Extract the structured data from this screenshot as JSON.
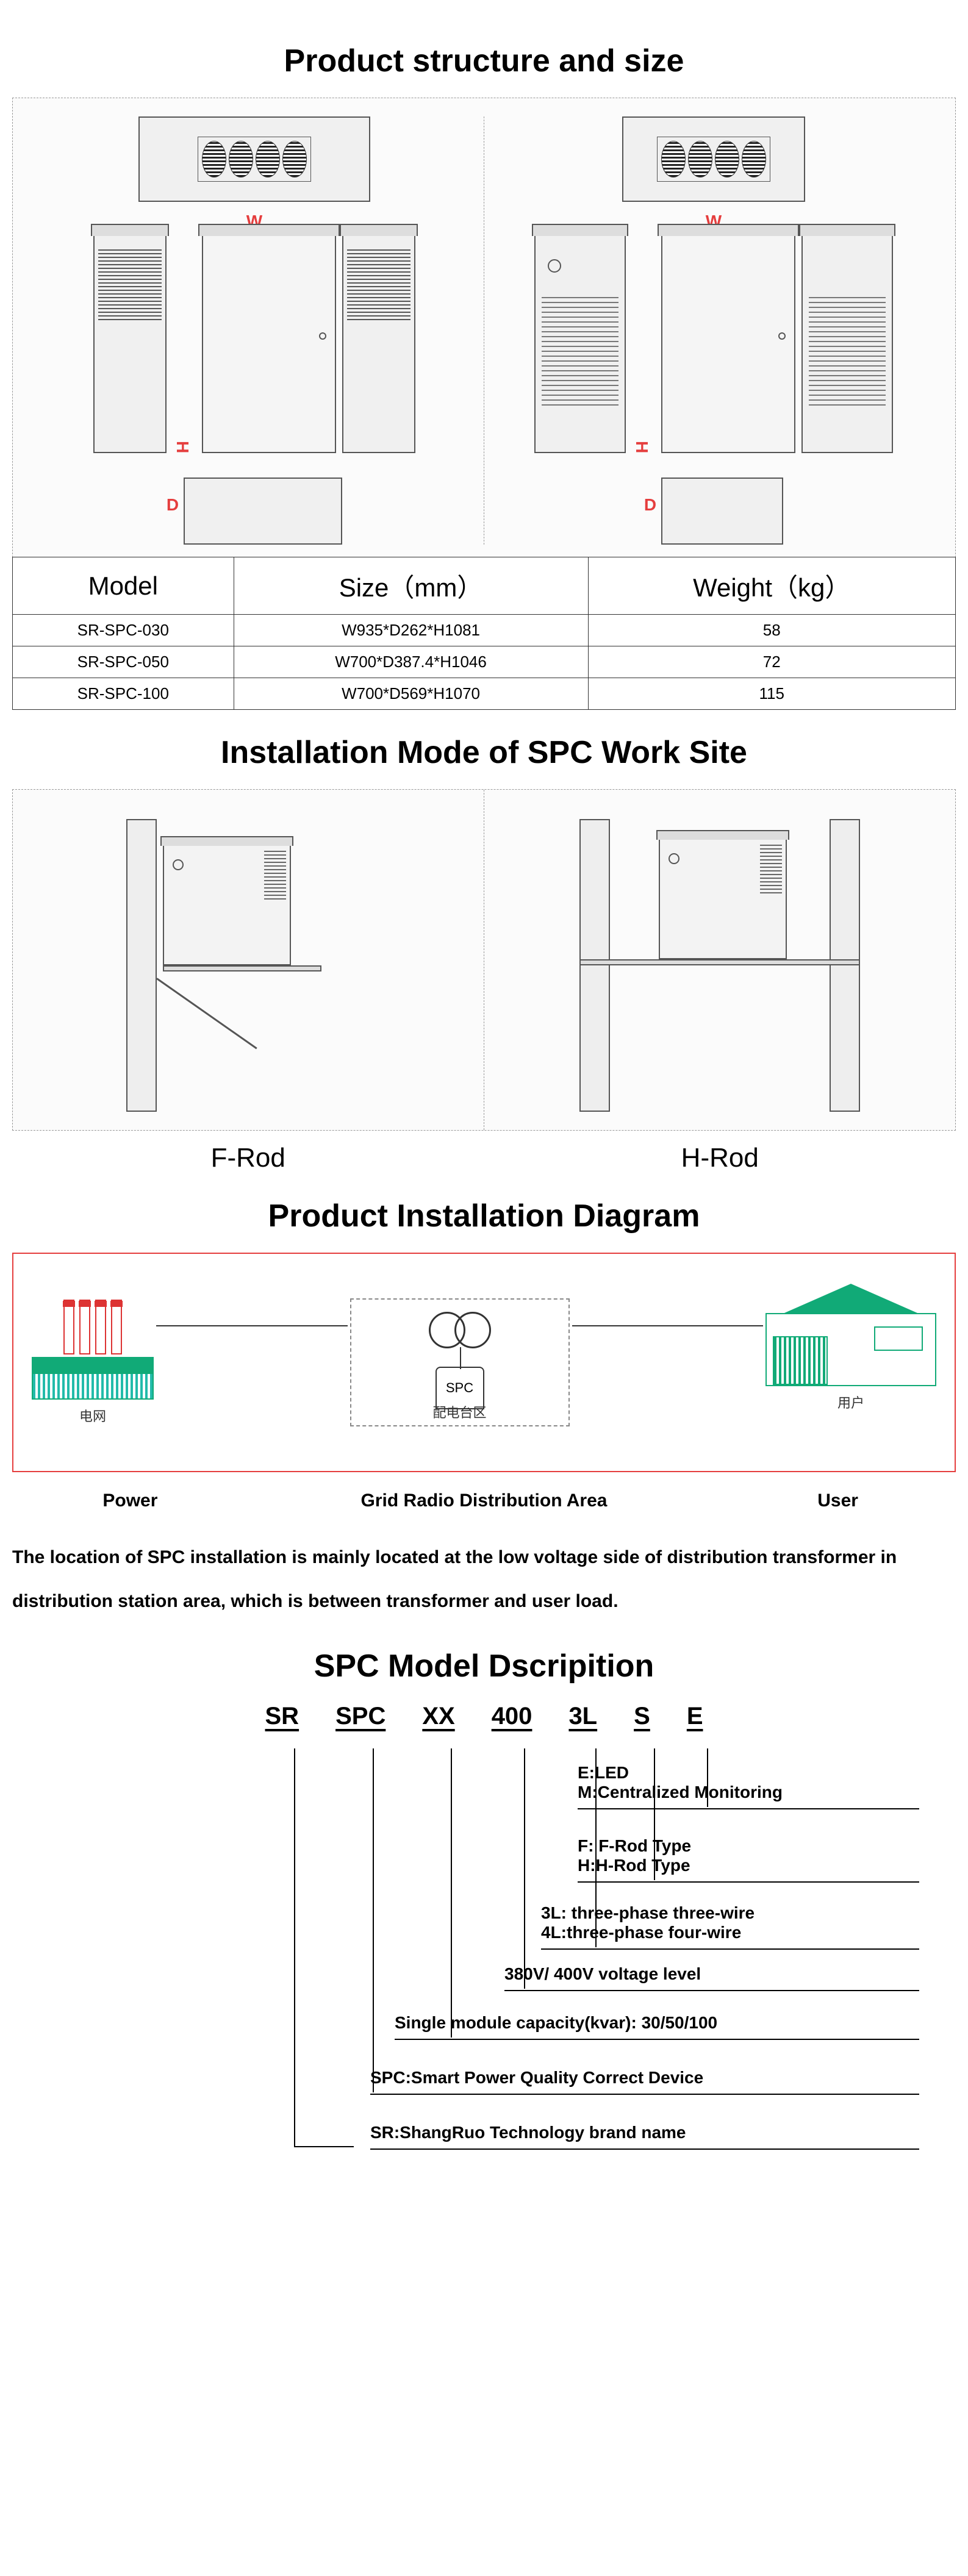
{
  "sections": {
    "structure_title": "Product structure and size",
    "install_mode_title": "Installation Mode of SPC Work Site",
    "install_diagram_title": "Product Installation Diagram",
    "model_desc_title": "SPC Model Dscripition"
  },
  "dims": {
    "W": "W",
    "H": "H",
    "D": "D"
  },
  "size_table": {
    "headers": [
      "Model",
      "Size（mm）",
      "Weight（kg）"
    ],
    "rows": [
      [
        "SR-SPC-030",
        "W935*D262*H1081",
        "58"
      ],
      [
        "SR-SPC-050",
        "W700*D387.4*H1046",
        "72"
      ],
      [
        "SR-SPC-100",
        "W700*D569*H1070",
        "115"
      ]
    ]
  },
  "rod_labels": {
    "f": "F-Rod",
    "h": "H-Rod"
  },
  "diagram": {
    "cn_power": "电网",
    "cn_dist": "配电台区",
    "cn_user": "用户",
    "spc": "SPC",
    "label_power": "Power",
    "label_dist": "Grid Radio Distribution Area",
    "label_user": "User",
    "description": "The location of SPC installation is mainly located at the low voltage side of distribution transformer in distribution station area, which is between transformer and user load."
  },
  "model": {
    "codes": [
      "SR",
      "SPC",
      "XX",
      "400",
      "3L",
      "S",
      "E"
    ],
    "lines": [
      "E:LED\nM:Centralized Monitoring",
      "F: F-Rod Type\nH:H-Rod Type",
      "3L: three-phase three-wire\n4L:three-phase four-wire",
      "380V/ 400V voltage level",
      "Single module capacity(kvar): 30/50/100",
      "SPC:Smart Power Quality Correct Device",
      "SR:ShangRuo Technology brand name"
    ]
  },
  "colors": {
    "accent": "#e53e3e",
    "green": "#1a7f5a",
    "border": "#333333",
    "dash": "#999999"
  }
}
